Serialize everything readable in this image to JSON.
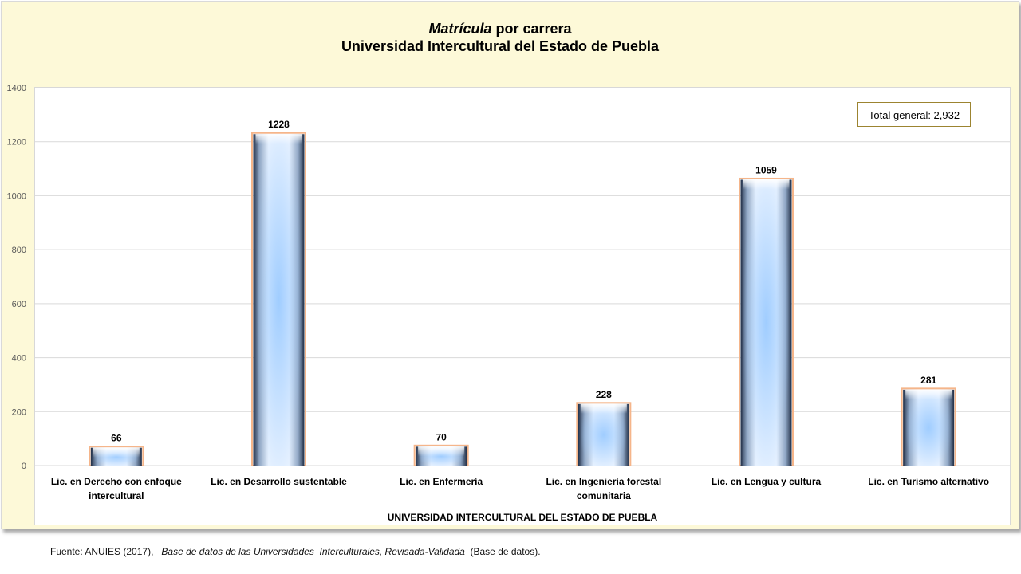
{
  "title": {
    "italic_word": "Matrícula",
    "rest_line1": " por  carrera",
    "line2": "Universidad Intercultural del Estado de Puebla"
  },
  "total_box": "Total general: 2,932",
  "chart_data": {
    "type": "bar",
    "categories": [
      [
        "Lic. en Derecho con enfoque",
        "intercultural"
      ],
      [
        "Lic. en Desarrollo sustentable"
      ],
      [
        "Lic. en Enfermería"
      ],
      [
        "Lic. en Ingeniería forestal",
        "comunitaria"
      ],
      [
        "Lic. en Lengua y cultura"
      ],
      [
        "Lic. en Turismo alternativo"
      ]
    ],
    "values": [
      66,
      1228,
      70,
      228,
      1059,
      281
    ],
    "data_labels": [
      "66",
      "1228",
      "70",
      "228",
      "1059",
      "281"
    ],
    "xlabel": "UNIVERSIDAD INTERCULTURAL DEL ESTADO DE PUEBLA",
    "ylim": [
      0,
      1400
    ],
    "yticks": [
      0,
      200,
      400,
      600,
      800,
      1000,
      1200,
      1400
    ],
    "grid": true,
    "colors": {
      "bar_center": "#9ccbff",
      "bar_edge": "#1f2d45",
      "bar_border": "#f5b58a",
      "frame_bg": "#fdf9d8",
      "total_box_border": "#9c8430"
    }
  },
  "source": {
    "prefix": "Fuente: ANUIES (2017),   ",
    "italic": "Base de datos de las Universidades  Interculturales, Revisada-Validada",
    "suffix": "  (Base de datos)."
  }
}
